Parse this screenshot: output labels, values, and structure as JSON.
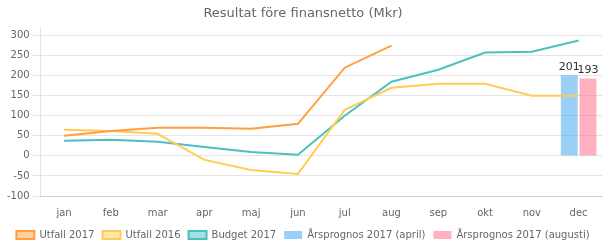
{
  "chart_data": {
    "type": "line",
    "title": "Resultat före finansnetto (Mkr)",
    "categories": [
      "jan",
      "feb",
      "mar",
      "apr",
      "maj",
      "jun",
      "jul",
      "aug",
      "sep",
      "okt",
      "nov",
      "dec"
    ],
    "series": [
      {
        "name": "Årsprognos 2017 (april)",
        "type": "bar",
        "data_labels": true,
        "values": [
          null,
          null,
          null,
          null,
          null,
          null,
          null,
          null,
          null,
          null,
          null,
          201
        ]
      },
      {
        "name": "Årsprognos 2017 (augusti)",
        "type": "bar",
        "data_labels": true,
        "values": [
          null,
          null,
          null,
          null,
          null,
          null,
          null,
          null,
          null,
          null,
          null,
          193
        ]
      },
      {
        "name": "Utfall 2017",
        "type": "line",
        "values": [
          50,
          62,
          70,
          70,
          68,
          80,
          220,
          275,
          null,
          null,
          null,
          null
        ]
      },
      {
        "name": "Utfall 2016",
        "type": "line",
        "values": [
          65,
          62,
          55,
          -10,
          -35,
          -45,
          115,
          170,
          180,
          180,
          150,
          150
        ]
      },
      {
        "name": "Budget 2017",
        "type": "line",
        "values": [
          38,
          40,
          35,
          22,
          10,
          3,
          100,
          185,
          215,
          258,
          260,
          288
        ]
      }
    ],
    "ylim": [
      -100,
      320
    ],
    "yticks": [
      -100,
      -50,
      0,
      50,
      100,
      150,
      200,
      250,
      300
    ],
    "grid": true,
    "legend": "bottom"
  }
}
